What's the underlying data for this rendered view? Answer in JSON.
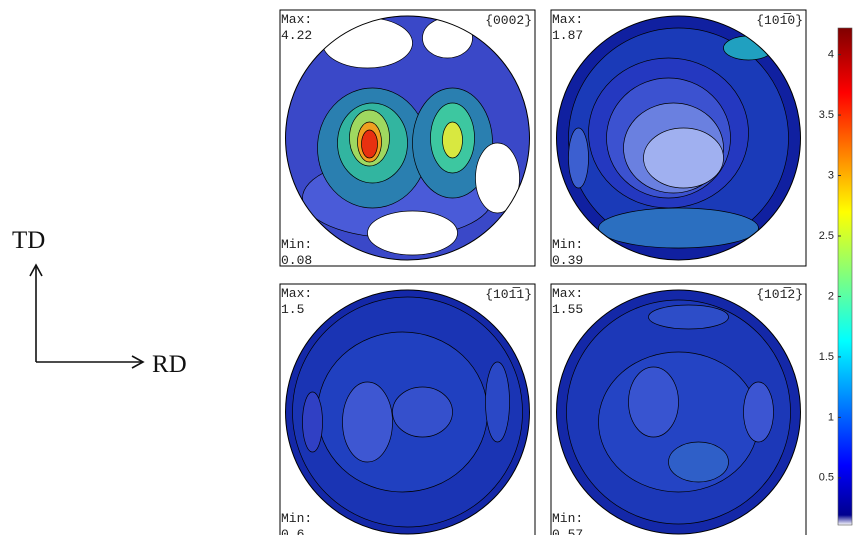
{
  "axes": {
    "y": "TD",
    "x": "RD"
  },
  "panels": [
    {
      "title": "{0002}",
      "max_label": "Max:",
      "max": 4.22,
      "min_label": "Min:",
      "min": 0.08
    },
    {
      "title": "{101̅0}",
      "max_label": "Max:",
      "max": 1.87,
      "min_label": "Min:",
      "min": 0.39
    },
    {
      "title": "{101̅1}",
      "max_label": "Max:",
      "max": 1.5,
      "min_label": "Min:",
      "min": 0.6
    },
    {
      "title": "{101̅2}",
      "max_label": "Max:",
      "max": 1.55,
      "min_label": "Min:",
      "min": 0.57
    }
  ],
  "colorbar": {
    "lim": [
      0.11,
      4.22
    ],
    "ticks": [
      0.5,
      1,
      1.5,
      2,
      2.5,
      3,
      3.5,
      4
    ]
  }
}
